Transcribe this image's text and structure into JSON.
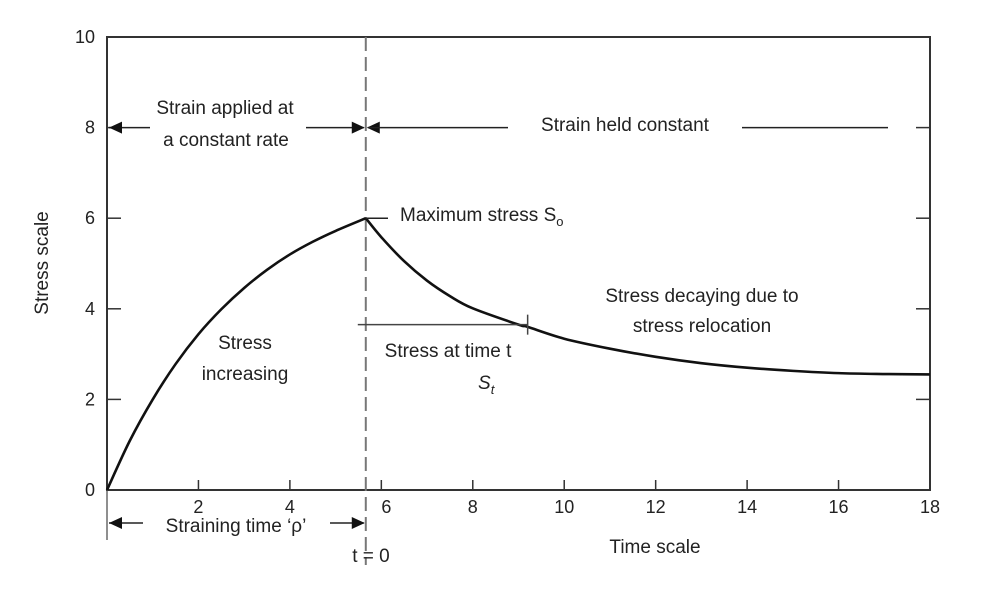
{
  "chart_data": {
    "type": "line",
    "xlabel": "Time scale",
    "ylabel": "Stress scale",
    "xlim": [
      0,
      18
    ],
    "ylim": [
      0,
      10
    ],
    "xticks": [
      "2",
      "4",
      "6",
      "8",
      "10",
      "12",
      "14",
      "16",
      "18"
    ],
    "yticks": [
      "0",
      "2",
      "4",
      "6",
      "8",
      "10"
    ],
    "grid": false,
    "series": [
      {
        "x": [
          0,
          0.5,
          1,
          1.5,
          2,
          2.5,
          3,
          3.5,
          4,
          4.5,
          5,
          5.66
        ],
        "y": [
          0,
          1.09,
          2.0,
          2.78,
          3.44,
          3.99,
          4.46,
          4.86,
          5.2,
          5.48,
          5.72,
          6.0
        ]
      },
      {
        "x": [
          5.66,
          6,
          6.5,
          7,
          7.5,
          8,
          9,
          9.2,
          10,
          11,
          12,
          13,
          14,
          15,
          16,
          17,
          18
        ],
        "y": [
          6.0,
          5.58,
          5.05,
          4.62,
          4.28,
          4.01,
          3.65,
          3.6,
          3.34,
          3.12,
          2.94,
          2.8,
          2.7,
          2.63,
          2.58,
          2.56,
          2.55
        ]
      }
    ],
    "divider_x": 5.66,
    "annotations": {
      "strain_applied_1": "Strain applied at",
      "strain_applied_2": "a constant rate",
      "strain_held": "Strain held constant",
      "max_stress": "Maximum stress S",
      "max_stress_sub": "o",
      "increasing_1": "Stress",
      "increasing_2": "increasing",
      "decaying_1": "Stress decaying due to",
      "decaying_2": "stress relocation",
      "at_time": "Stress at time t",
      "st": "S",
      "st_sub": "t",
      "straining_time": "Straining time ‘ρ’",
      "t0": "t = 0"
    },
    "st_level": {
      "x": 9.2,
      "y": 3.65
    }
  }
}
